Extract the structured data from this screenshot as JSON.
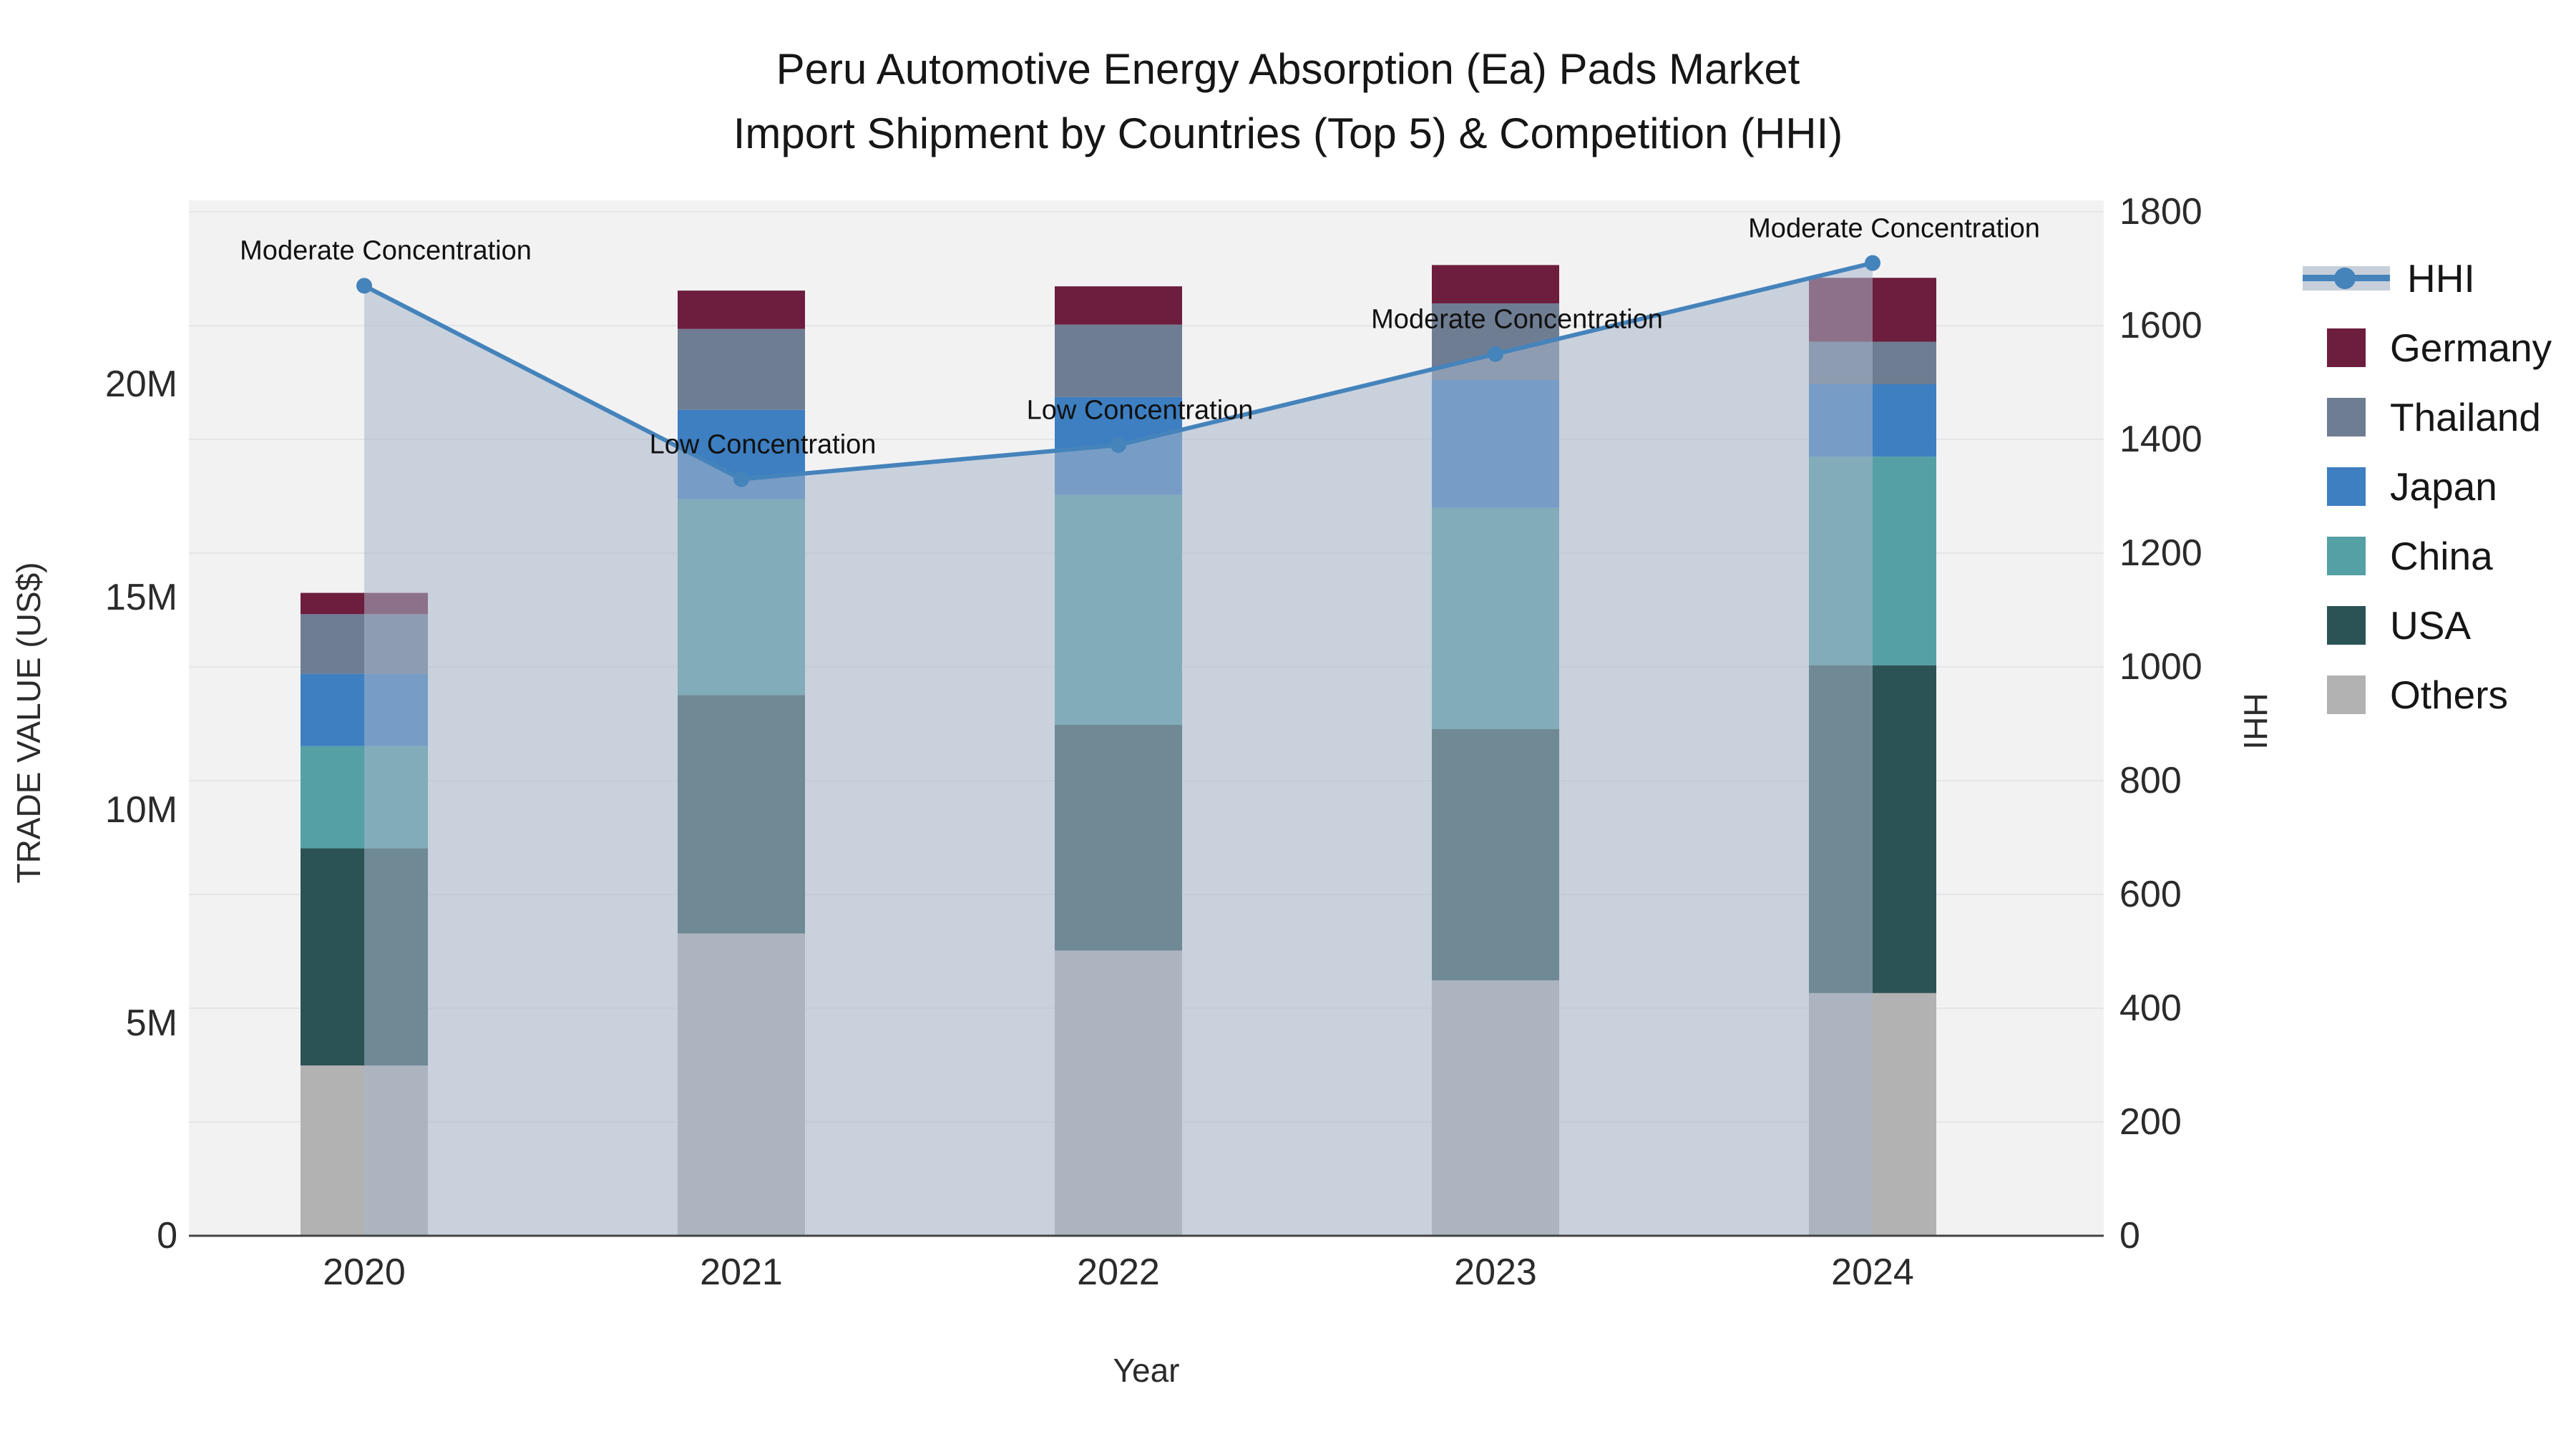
{
  "title": {
    "line1": "Peru Automotive Energy Absorption (Ea) Pads Market",
    "line2": "Import Shipment by Countries (Top 5) & Competition (HHI)"
  },
  "axes": {
    "left": {
      "title": "TRADE VALUE (US$)",
      "tick_labels": [
        "0",
        "5M",
        "10M",
        "15M",
        "20M"
      ],
      "tick_values_millions": [
        0,
        5,
        10,
        15,
        20
      ]
    },
    "right": {
      "title": "HHI",
      "tick_labels": [
        "0",
        "200",
        "400",
        "600",
        "800",
        "1000",
        "1200",
        "1400",
        "1600",
        "1800"
      ],
      "tick_values": [
        0,
        200,
        400,
        600,
        800,
        1000,
        1200,
        1400,
        1600,
        1800
      ]
    },
    "x": {
      "title": "Year",
      "categories": [
        "2020",
        "2021",
        "2022",
        "2023",
        "2024"
      ]
    }
  },
  "legend": {
    "items": [
      {
        "label": "HHI",
        "type": "line",
        "color": "#4583bb"
      },
      {
        "label": "Germany",
        "type": "swatch",
        "color": "#6d1d3d"
      },
      {
        "label": "Thailand",
        "type": "swatch",
        "color": "#6f7d93"
      },
      {
        "label": "Japan",
        "type": "swatch",
        "color": "#3d7fc1"
      },
      {
        "label": "China",
        "type": "swatch",
        "color": "#54a0a4"
      },
      {
        "label": "USA",
        "type": "swatch",
        "color": "#2b5356"
      },
      {
        "label": "Others",
        "type": "swatch",
        "color": "#b2b2b2"
      }
    ]
  },
  "chart_data": {
    "type": "bar",
    "subtype": "stacked bars (left axis) + HHI line with markers and translucent area fill (right axis)",
    "title": "Peru Automotive Energy Absorption (Ea) Pads Market — Import Shipment by Countries (Top 5) & Competition (HHI)",
    "categories": [
      "2020",
      "2021",
      "2022",
      "2023",
      "2024"
    ],
    "unit": "US$ millions",
    "xlabel": "Year",
    "ylabel": "TRADE VALUE (US$)",
    "y2label": "HHI",
    "ylim_millions": [
      0,
      24.3
    ],
    "y2lim": [
      0,
      1820
    ],
    "grid": true,
    "legend_position": "right",
    "stack_order_bottom_to_top": [
      "Others",
      "USA",
      "China",
      "Japan",
      "Thailand",
      "Germany"
    ],
    "series": [
      {
        "name": "Others",
        "color": "#b2b2b2",
        "values": [
          4.0,
          7.1,
          6.7,
          6.0,
          5.7
        ]
      },
      {
        "name": "USA",
        "color": "#2b5356",
        "values": [
          5.1,
          5.6,
          5.3,
          5.9,
          7.7
        ]
      },
      {
        "name": "China",
        "color": "#54a0a4",
        "values": [
          2.4,
          4.6,
          5.4,
          5.2,
          4.9
        ]
      },
      {
        "name": "Japan",
        "color": "#3d7fc1",
        "values": [
          1.7,
          2.1,
          2.3,
          3.0,
          1.7
        ]
      },
      {
        "name": "Thailand",
        "color": "#6f7d93",
        "values": [
          1.4,
          1.9,
          1.7,
          1.8,
          1.0
        ]
      },
      {
        "name": "Germany",
        "color": "#6d1d3d",
        "values": [
          0.5,
          0.9,
          0.9,
          0.9,
          1.5
        ]
      }
    ],
    "totals_millions": [
      15.1,
      22.2,
      22.3,
      22.8,
      22.5
    ],
    "line_series": {
      "name": "HHI",
      "axis": "right",
      "color": "#4583bb",
      "area_fill": "rgba(168,182,203,0.55)",
      "values": [
        1670,
        1330,
        1390,
        1550,
        1710
      ],
      "annotations": [
        "Moderate Concentration",
        "Low Concentration",
        "Low Concentration",
        "Moderate Concentration",
        "Moderate Concentration"
      ]
    }
  }
}
